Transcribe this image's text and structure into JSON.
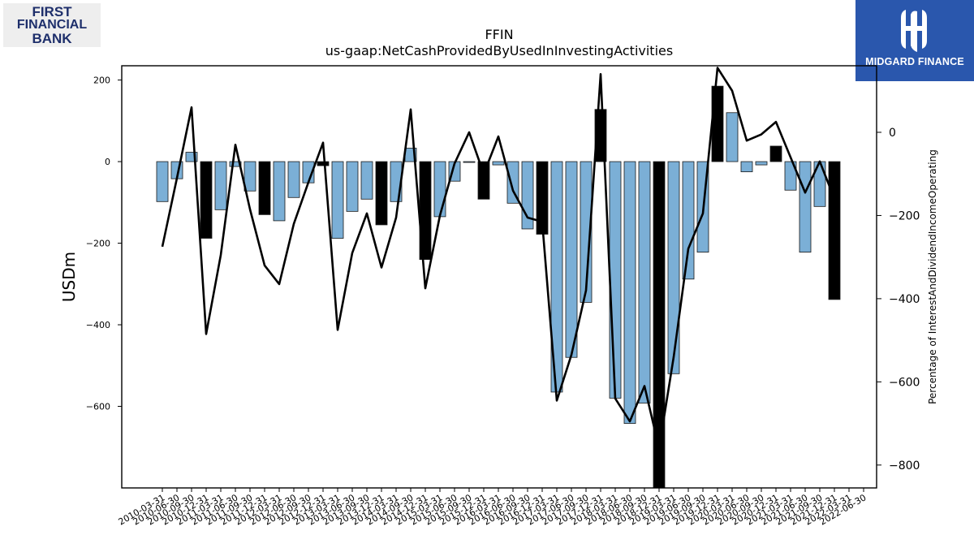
{
  "logos": {
    "left": {
      "line1": "FIRST",
      "line2": "FINANCIAL",
      "line3": "BANK"
    },
    "right": {
      "name": "MIDGARD FINANCE"
    }
  },
  "chart_data": {
    "type": "bar",
    "title": "FFIN",
    "subtitle": "us-gaap:NetCashProvidedByUsedInInvestingActivities",
    "ylabel": "USDm",
    "y2label": "Percentage of InterestAndDividendIncomeOperating",
    "ylim": [
      -800,
      235
    ],
    "y2lim": [
      -855,
      160
    ],
    "yticks": [
      200,
      0,
      -200,
      -400,
      -600
    ],
    "y2ticks": [
      0,
      -200,
      -400,
      -600,
      -800
    ],
    "colors": {
      "bar": "#7bafd6",
      "highlight": "#000000",
      "line": "#000000"
    },
    "categories": [
      "2010-03-31",
      "2010-06-30",
      "2010-09-30",
      "2010-12-31",
      "2011-03-31",
      "2011-06-30",
      "2011-09-30",
      "2011-12-31",
      "2012-03-31",
      "2012-06-30",
      "2012-09-30",
      "2012-12-31",
      "2013-03-31",
      "2013-06-30",
      "2013-09-30",
      "2013-12-31",
      "2014-03-31",
      "2014-09-30",
      "2014-12-31",
      "2015-03-31",
      "2015-06-30",
      "2015-09-30",
      "2015-12-31",
      "2016-03-31",
      "2016-06-30",
      "2016-09-30",
      "2016-12-31",
      "2017-03-31",
      "2017-06-30",
      "2017-09-30",
      "2017-12-31",
      "2018-03-31",
      "2018-06-30",
      "2018-09-30",
      "2018-12-31",
      "2019-03-31",
      "2019-06-30",
      "2019-09-30",
      "2019-12-31",
      "2020-03-31",
      "2020-06-30",
      "2020-09-30",
      "2020-12-31",
      "2021-03-31",
      "2021-06-30",
      "2021-09-30",
      "2021-12-31",
      "2022-03-31",
      "2022-06-30"
    ],
    "xtick_labels": [
      "2010-03-31",
      "2010-06-30",
      "2010-09-30",
      "2010-12-31",
      "2011-03-31",
      "2011-06-30",
      "2011-09-30",
      "2011-12-31",
      "2012-03-31",
      "2012-06-30",
      "2012-09-30",
      "2012-12-31",
      "2013-03-31",
      "2013-06-30",
      "2013-09-30",
      "2013-12-31",
      "2014-03-31",
      "2014-09-30",
      "2014-12-31",
      "2015-03-31",
      "2015-06-30",
      "2015-09-30",
      "2015-12-31",
      "2016-03-31",
      "2016-06-30",
      "2016-09-30",
      "2016-12-31",
      "2017-03-31",
      "2017-06-30",
      "2017-09-30",
      "2017-12-31",
      "2018-03-31",
      "2018-06-30",
      "2018-09-30",
      "2018-12-31",
      "2019-03-31",
      "2019-06-30",
      "2019-09-30",
      "2019-12-31",
      "2020-03-31",
      "2020-06-30",
      "2020-09-30",
      "2020-12-31",
      "2021-03-31",
      "2021-06-30",
      "2021-09-30",
      "2021-12-31",
      "2022-03-31",
      "2022-06-30"
    ],
    "values": [
      -98,
      -42,
      23,
      -188,
      -118,
      -12,
      -72,
      -130,
      -145,
      -88,
      -52,
      -10,
      -188,
      -122,
      -92,
      -155,
      -98,
      33,
      -240,
      -135,
      -48,
      -2,
      -92,
      -8,
      -102,
      -165,
      -178,
      -565,
      -480,
      -345,
      128,
      -580,
      -642,
      -592,
      -800,
      -520,
      -288,
      -222,
      185,
      120,
      -25,
      -8,
      38,
      -70,
      -222,
      -110,
      -338,
      null,
      null
    ],
    "highlight": [
      false,
      false,
      false,
      true,
      false,
      false,
      false,
      true,
      false,
      false,
      false,
      true,
      false,
      false,
      false,
      true,
      false,
      false,
      true,
      false,
      false,
      false,
      true,
      false,
      false,
      false,
      true,
      false,
      false,
      false,
      true,
      false,
      false,
      false,
      true,
      false,
      false,
      false,
      true,
      false,
      false,
      false,
      true,
      false,
      false,
      false,
      true,
      false,
      false
    ],
    "pct_values": [
      -275,
      -110,
      60,
      -485,
      -295,
      -30,
      -185,
      -320,
      -365,
      -220,
      -120,
      -25,
      -475,
      -290,
      -195,
      -325,
      -205,
      55,
      -375,
      -200,
      -75,
      0,
      -100,
      -10,
      -140,
      -205,
      -215,
      -645,
      -535,
      -380,
      140,
      -640,
      -695,
      -610,
      -760,
      -540,
      -280,
      -195,
      155,
      100,
      -20,
      -5,
      25,
      -60,
      -145,
      -70,
      -160,
      null,
      null
    ]
  }
}
